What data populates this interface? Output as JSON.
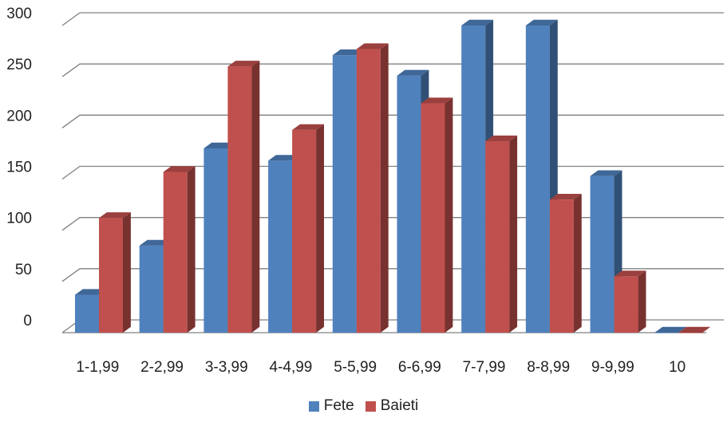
{
  "chart_data": {
    "type": "bar",
    "title": "",
    "xlabel": "",
    "ylabel": "",
    "categories": [
      "1-1,99",
      "2-2,99",
      "3-3,99",
      "4-4,99",
      "5-5,99",
      "6-6,99",
      "7-7,99",
      "8-8,99",
      "9-9,99",
      "10"
    ],
    "series": [
      {
        "name": "Fete",
        "color": "#4F81BD",
        "values": [
          37,
          85,
          180,
          168,
          271,
          251,
          300,
          300,
          153,
          0
        ]
      },
      {
        "name": "Baieti",
        "color": "#C0504D",
        "values": [
          112,
          157,
          260,
          198,
          277,
          224,
          187,
          130,
          55,
          0
        ]
      }
    ],
    "ylim": [
      0,
      300
    ],
    "yticks": [
      0,
      50,
      100,
      150,
      200,
      250,
      300
    ],
    "grid": true,
    "legend_position": "bottom"
  }
}
